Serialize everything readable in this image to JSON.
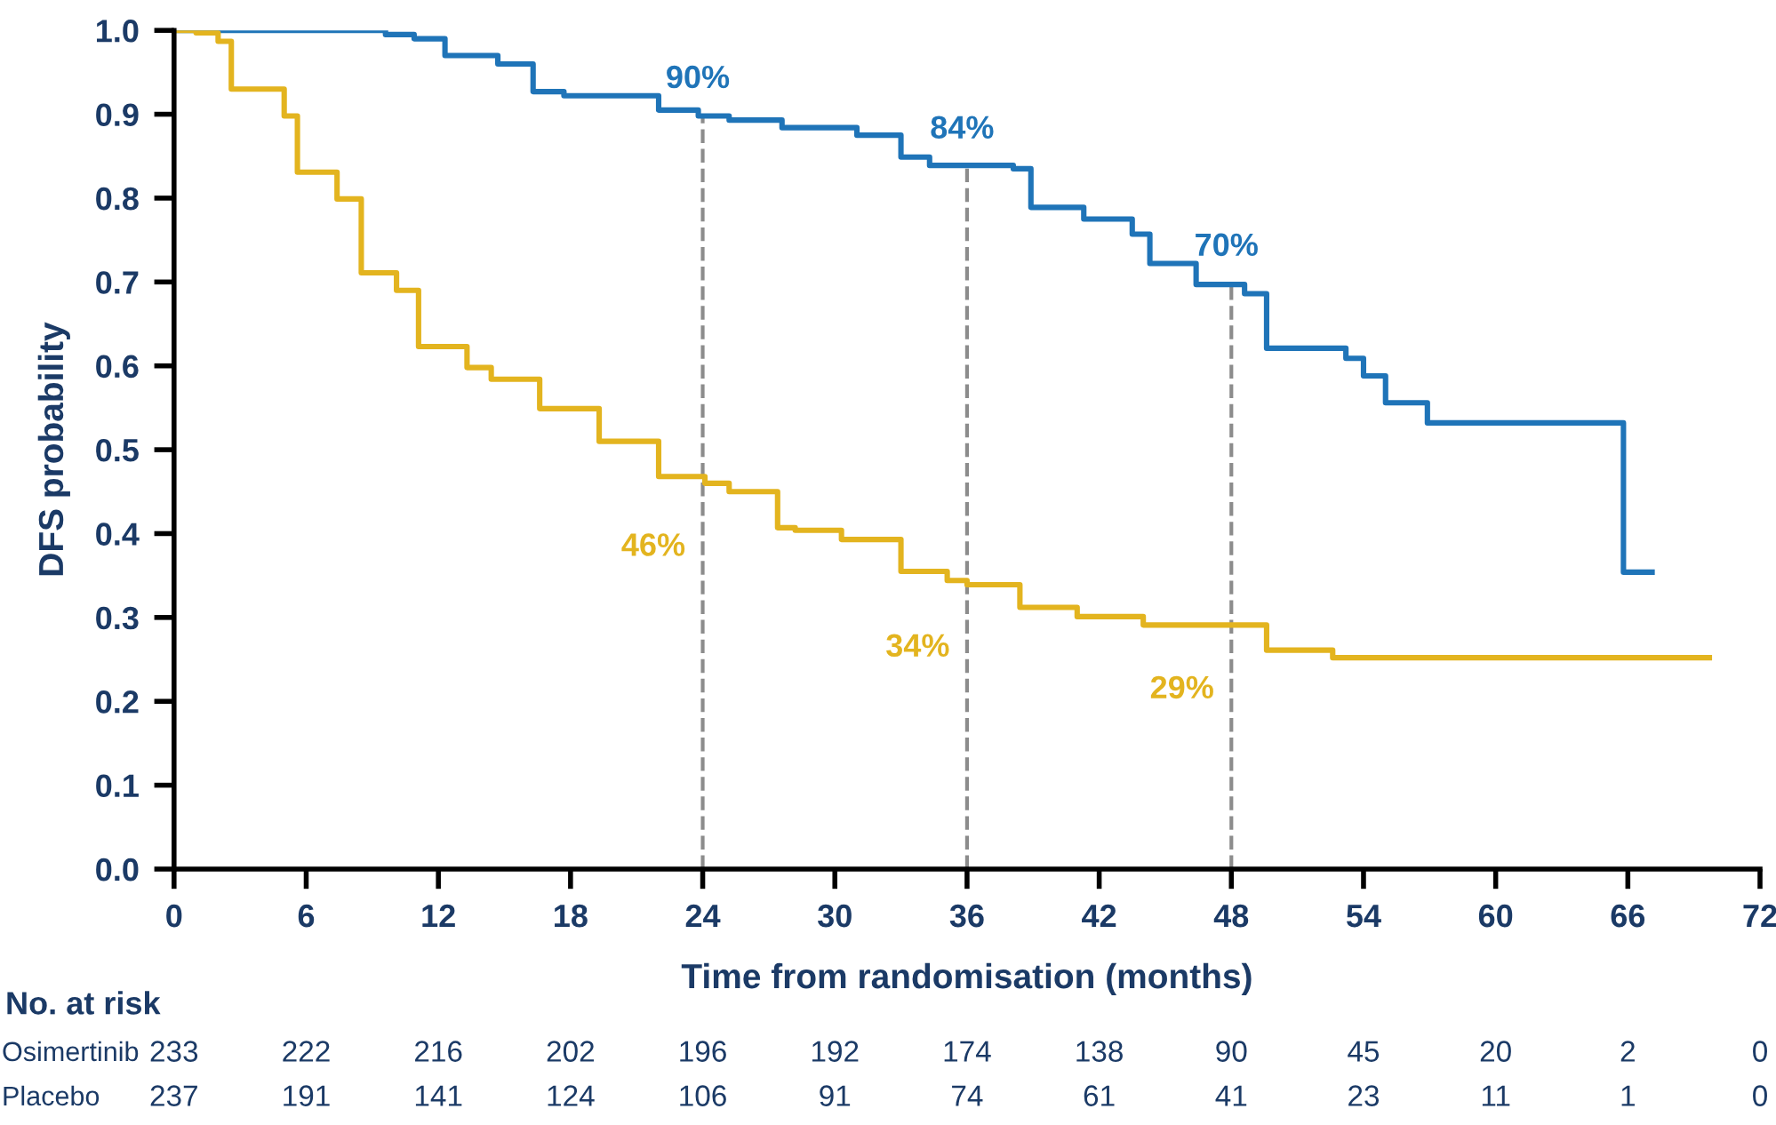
{
  "chart_data": {
    "type": "step",
    "ylabel": "DFS probability",
    "xlabel": "Time from randomisation (months)",
    "xlim": [
      0,
      72
    ],
    "xticks": [
      0,
      6,
      12,
      18,
      24,
      30,
      36,
      42,
      48,
      54,
      60,
      66,
      72
    ],
    "ylim": [
      0,
      1.0
    ],
    "yticks": [
      {
        "value": 0,
        "label": "0.0"
      },
      {
        "value": 0.1,
        "label": "0.1"
      },
      {
        "value": 0.2,
        "label": "0.2"
      },
      {
        "value": 0.3,
        "label": "0.3"
      },
      {
        "value": 0.4,
        "label": "0.4"
      },
      {
        "value": 0.5,
        "label": "0.5"
      },
      {
        "value": 0.6,
        "label": "0.6"
      },
      {
        "value": 0.7,
        "label": "0.7"
      },
      {
        "value": 0.8,
        "label": "0.8"
      },
      {
        "value": 0.9,
        "label": "0.9"
      },
      {
        "value": 1.0,
        "label": "1.0"
      }
    ],
    "grid": false,
    "marker": "none",
    "line_style": "solid",
    "series": [
      {
        "color": "#1f74b8",
        "x": [
          0,
          9.6,
          10.9,
          12.3,
          14.7,
          16.3,
          17.7,
          22,
          23.8,
          25.2,
          27.6,
          31,
          33,
          34.3,
          38.1,
          38.9,
          41.3,
          43.5,
          44.3,
          46.4,
          48.6,
          49.6,
          53.2,
          54,
          55,
          56.9,
          65.8,
          67.1
        ],
        "values": [
          1.0,
          0.995,
          0.99,
          0.97,
          0.96,
          0.927,
          0.922,
          0.905,
          0.898,
          0.893,
          0.884,
          0.875,
          0.849,
          0.839,
          0.835,
          0.789,
          0.775,
          0.757,
          0.722,
          0.697,
          0.686,
          0.621,
          0.609,
          0.588,
          0.556,
          0.532,
          0.354,
          0.354
        ]
      },
      {
        "color": "#e3b41f",
        "x": [
          0,
          1,
          2,
          2.6,
          5,
          5.6,
          7.4,
          8.5,
          10.1,
          11.1,
          13.3,
          14.4,
          16.6,
          19.3,
          22,
          24.1,
          25.2,
          27.4,
          28.2,
          30.3,
          33,
          35.1,
          36,
          38.4,
          41,
          44,
          49.6,
          52.6,
          69.7
        ],
        "values": [
          1.0,
          0.997,
          0.987,
          0.93,
          0.898,
          0.831,
          0.799,
          0.711,
          0.69,
          0.623,
          0.598,
          0.584,
          0.549,
          0.51,
          0.468,
          0.46,
          0.45,
          0.407,
          0.404,
          0.393,
          0.355,
          0.344,
          0.339,
          0.312,
          0.301,
          0.291,
          0.261,
          0.252,
          0.252
        ]
      }
    ],
    "ref_lines": [
      {
        "axis": "x",
        "value": 24,
        "color": "#8c8c8c",
        "line_style": "dashed"
      },
      {
        "axis": "x",
        "value": 36,
        "color": "#8c8c8c",
        "line_style": "dashed"
      },
      {
        "axis": "x",
        "value": 48,
        "color": "#8c8c8c",
        "line_style": "dashed"
      }
    ],
    "annotations": [
      {
        "text": "90%",
        "x": 24,
        "y": 0.9
      },
      {
        "text": "84%",
        "x": 36,
        "y": 0.84
      },
      {
        "text": "70%",
        "x": 48,
        "y": 0.7
      },
      {
        "text": "46%",
        "x": 24,
        "y": 0.46
      },
      {
        "text": "34%",
        "x": 36,
        "y": 0.34
      },
      {
        "text": "29%",
        "x": 48,
        "y": 0.29
      },
      "No. at risk",
      "Osimertinib",
      "233",
      "222",
      "216",
      "202",
      "196",
      "192",
      "174",
      "138",
      "90",
      "45",
      "20",
      "2",
      "0",
      "Placebo",
      "237",
      "191",
      "141",
      "124",
      "106",
      "91",
      "74",
      "61",
      "41",
      "23",
      "11",
      "1",
      "0"
    ]
  }
}
